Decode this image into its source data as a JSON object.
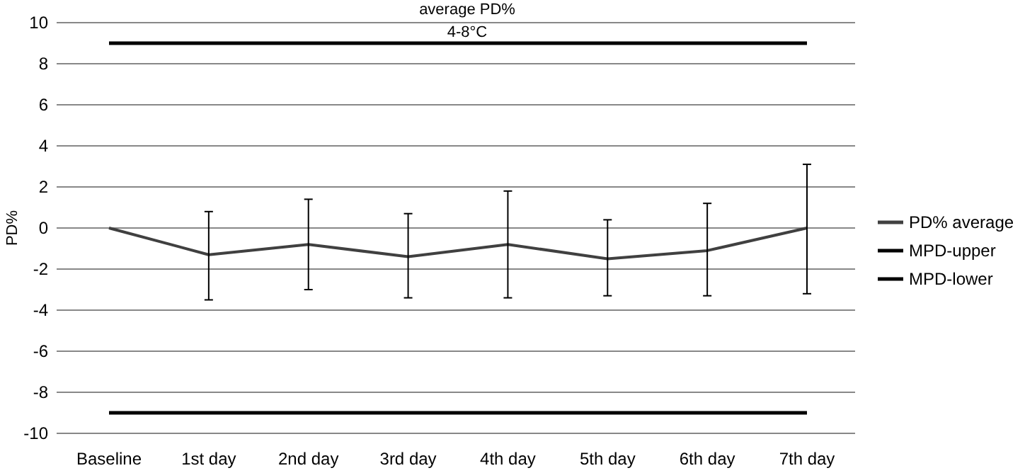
{
  "chart_data": {
    "type": "line",
    "title": "average PD%",
    "subtitle": "4-8°C",
    "ylabel": "PD%",
    "categories": [
      "Baseline",
      "1st day",
      "2nd day",
      "3rd day",
      "4th day",
      "5th day",
      "6th day",
      "7th day"
    ],
    "series": [
      {
        "name": "PD% average",
        "color": "#404040",
        "values": [
          0,
          -1.3,
          -0.8,
          -1.4,
          -0.8,
          -1.5,
          -1.1,
          0
        ],
        "errors": [
          null,
          [
            -3.5,
            0.8
          ],
          [
            -3.0,
            1.4
          ],
          [
            -3.4,
            0.7
          ],
          [
            -3.4,
            1.8
          ],
          [
            -3.3,
            0.4
          ],
          [
            -3.3,
            1.2
          ],
          [
            -3.2,
            3.1
          ]
        ]
      },
      {
        "name": "MPD-upper",
        "color": "#000000",
        "values": [
          9,
          9,
          9,
          9,
          9,
          9,
          9,
          9
        ]
      },
      {
        "name": "MPD-lower",
        "color": "#000000",
        "values": [
          -9,
          -9,
          -9,
          -9,
          -9,
          -9,
          -9,
          -9
        ]
      }
    ],
    "ylim": [
      -10,
      10
    ],
    "yticks": [
      -10,
      -8,
      -6,
      -4,
      -2,
      0,
      2,
      4,
      6,
      8,
      10
    ],
    "grid": "y",
    "legend": "right",
    "marker": "none",
    "line_style": "solid"
  }
}
